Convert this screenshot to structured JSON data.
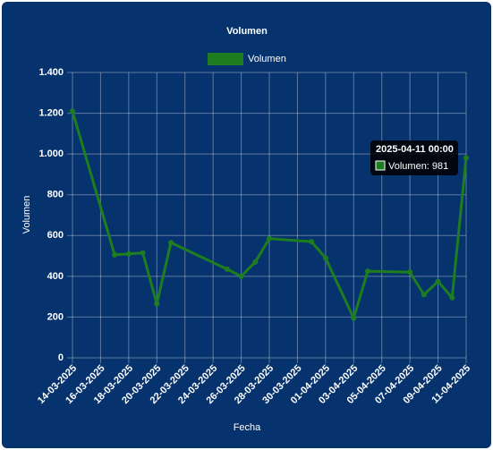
{
  "chart_data": {
    "type": "line",
    "title": "Volumen",
    "x_label": "Fecha",
    "y_label": "Volumen",
    "series": [
      {
        "name": "Volumen",
        "color": "#1e7d1e",
        "x": [
          "14-03-2025",
          "17-03-2025",
          "18-03-2025",
          "19-03-2025",
          "20-03-2025",
          "21-03-2025",
          "25-03-2025",
          "26-03-2025",
          "27-03-2025",
          "28-03-2025",
          "31-03-2025",
          "01-04-2025",
          "03-04-2025",
          "04-04-2025",
          "07-04-2025",
          "08-04-2025",
          "09-04-2025",
          "10-04-2025",
          "11-04-2025"
        ],
        "values": [
          1210,
          505,
          510,
          515,
          265,
          565,
          435,
          400,
          470,
          585,
          570,
          490,
          195,
          425,
          420,
          310,
          375,
          295,
          981
        ]
      }
    ],
    "xlim": [
      "14-03-2025",
      "11-04-2025"
    ],
    "xticks": [
      "14-03-2025",
      "16-03-2025",
      "18-03-2025",
      "20-03-2025",
      "22-03-2025",
      "24-03-2025",
      "26-03-2025",
      "28-03-2025",
      "30-03-2025",
      "01-04-2025",
      "03-04-2025",
      "05-04-2025",
      "07-04-2025",
      "09-04-2025",
      "11-04-2025"
    ],
    "ylim": [
      0,
      1400
    ],
    "yticks": [
      0,
      200,
      400,
      600,
      800,
      {
        "value": 1000,
        "label": "1.000"
      },
      {
        "value": 1200,
        "label": "1.200"
      },
      {
        "value": 1400,
        "label": "1.400"
      }
    ],
    "grid": true,
    "legend": "top",
    "tooltip": {
      "title": "2025-04-11 00:00",
      "label": "Volumen: 981"
    }
  }
}
